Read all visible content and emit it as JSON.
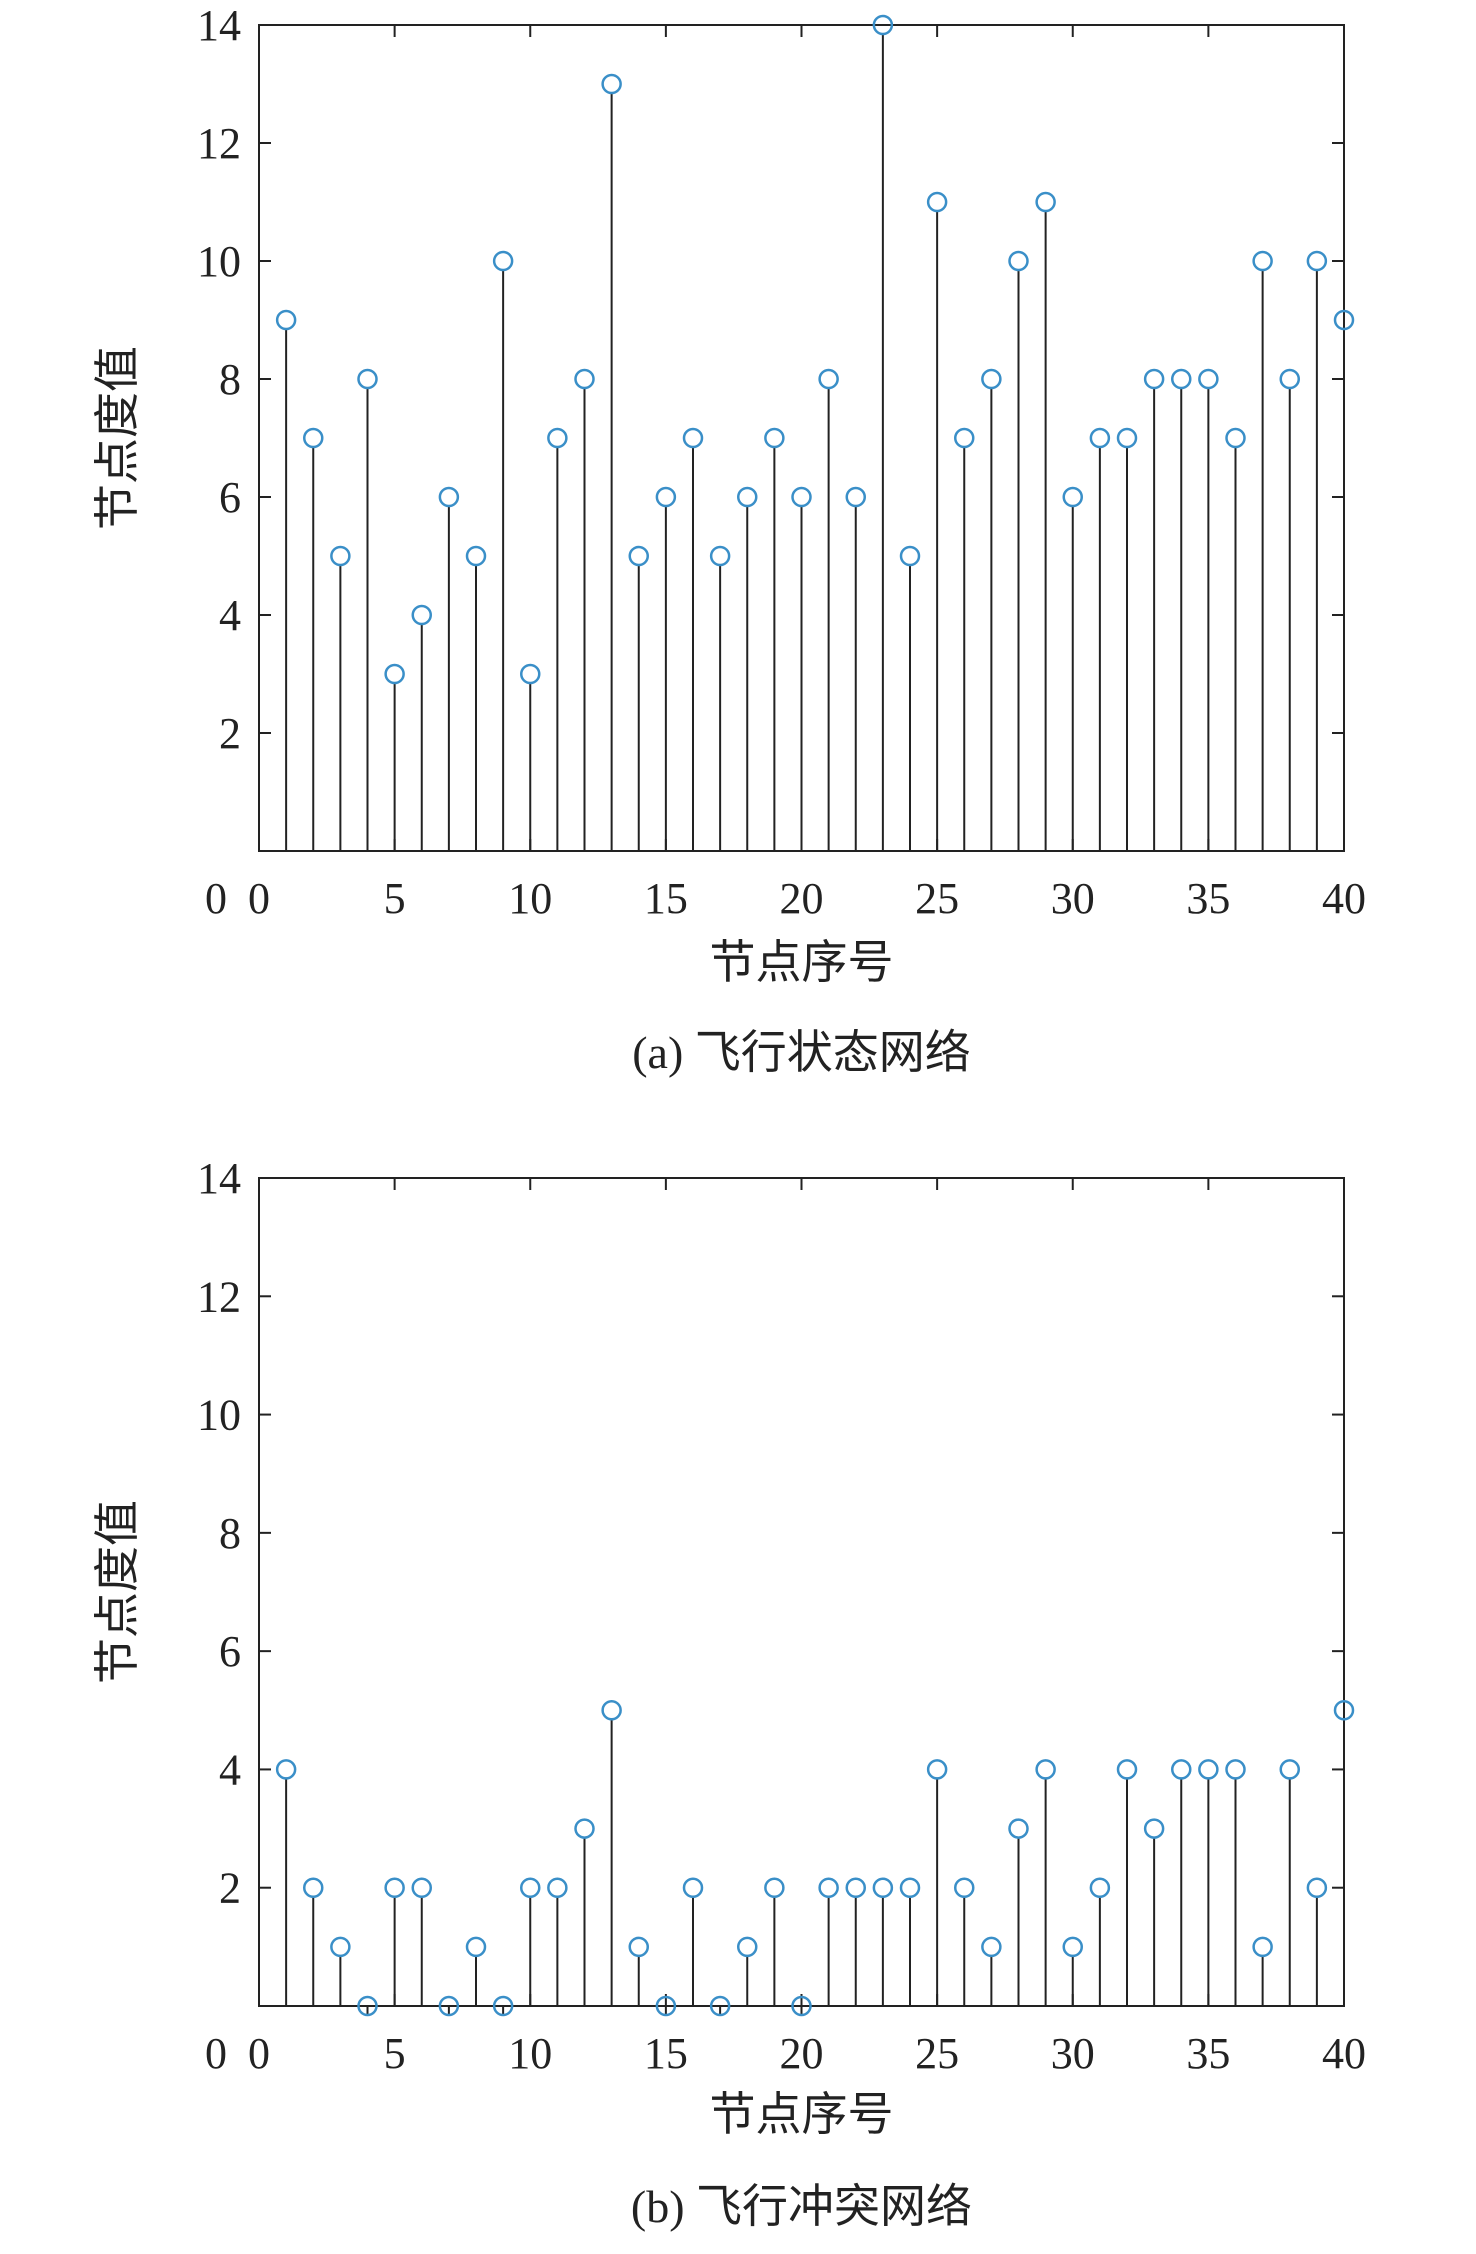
{
  "chart_data": [
    {
      "type": "stem",
      "panel": "a",
      "caption": "(a) 飞行状态网络",
      "xlabel": "节点序号",
      "ylabel": "节点度值",
      "xlim": [
        0,
        40
      ],
      "ylim": [
        0,
        14
      ],
      "xticks": [
        0,
        5,
        10,
        15,
        20,
        25,
        30,
        35,
        40
      ],
      "yticks": [
        2,
        4,
        6,
        8,
        10,
        12,
        14
      ],
      "x": [
        1,
        2,
        3,
        4,
        5,
        6,
        7,
        8,
        9,
        10,
        11,
        12,
        13,
        14,
        15,
        16,
        17,
        18,
        19,
        20,
        21,
        22,
        23,
        24,
        25,
        26,
        27,
        28,
        29,
        30,
        31,
        32,
        33,
        34,
        35,
        36,
        37,
        38,
        39,
        40
      ],
      "values": [
        9,
        7,
        5,
        8,
        3,
        4,
        6,
        5,
        10,
        3,
        7,
        8,
        13,
        5,
        6,
        7,
        5,
        6,
        7,
        6,
        8,
        6,
        14,
        5,
        11,
        7,
        8,
        10,
        11,
        6,
        7,
        7,
        8,
        8,
        8,
        7,
        10,
        8,
        10,
        9
      ],
      "marker": "circle",
      "marker_color": "#3a8fc8",
      "stem_color": "#222222",
      "grid": false
    },
    {
      "type": "stem",
      "panel": "b",
      "caption": "(b) 飞行冲突网络",
      "xlabel": "节点序号",
      "ylabel": "节点度值",
      "xlim": [
        0,
        40
      ],
      "ylim": [
        0,
        14
      ],
      "xticks": [
        0,
        5,
        10,
        15,
        20,
        25,
        30,
        35,
        40
      ],
      "yticks": [
        2,
        4,
        6,
        8,
        10,
        12,
        14
      ],
      "x": [
        1,
        2,
        3,
        4,
        5,
        6,
        7,
        8,
        9,
        10,
        11,
        12,
        13,
        14,
        15,
        16,
        17,
        18,
        19,
        20,
        21,
        22,
        23,
        24,
        25,
        26,
        27,
        28,
        29,
        30,
        31,
        32,
        33,
        34,
        35,
        36,
        37,
        38,
        39,
        40
      ],
      "values": [
        4,
        2,
        1,
        0,
        2,
        2,
        0,
        1,
        0,
        2,
        2,
        3,
        5,
        1,
        0,
        2,
        0,
        1,
        2,
        0,
        2,
        2,
        2,
        2,
        4,
        2,
        1,
        3,
        4,
        1,
        2,
        4,
        3,
        4,
        4,
        4,
        1,
        4,
        2,
        5
      ],
      "marker": "circle",
      "marker_color": "#3a8fc8",
      "stem_color": "#222222",
      "grid": false
    }
  ]
}
